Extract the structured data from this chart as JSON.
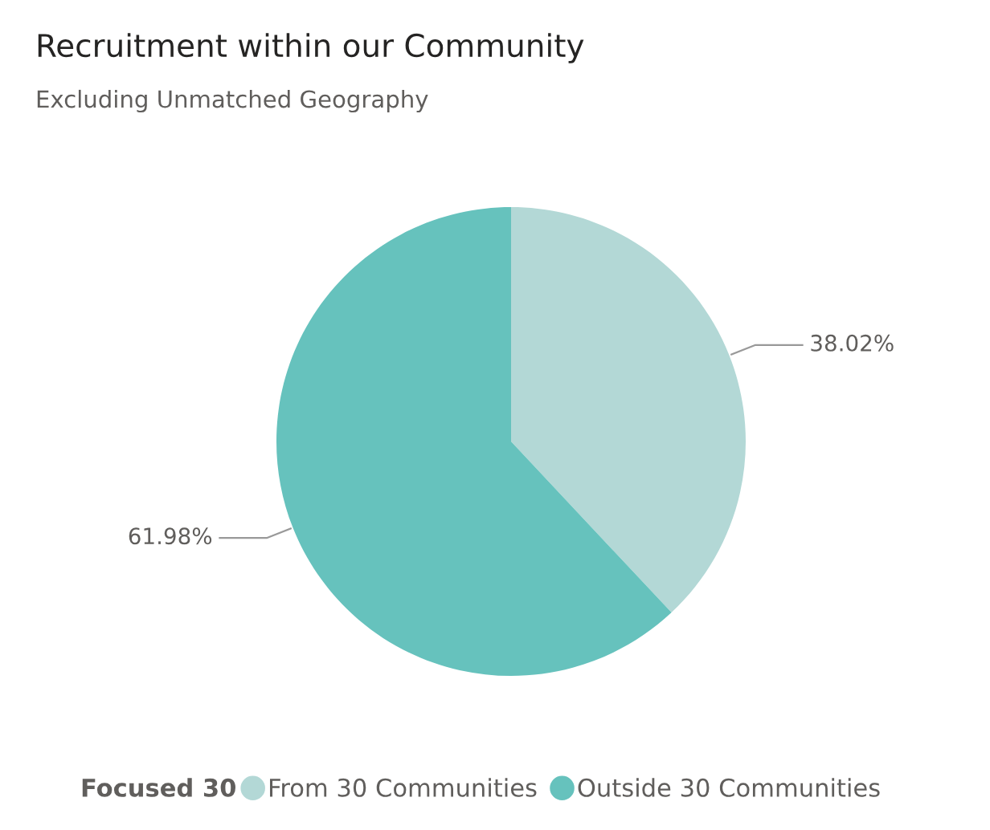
{
  "chart_data": {
    "type": "pie",
    "title": "Recruitment within our Community",
    "subtitle": "Excluding Unmatched Geography",
    "legend_title": "Focused 30",
    "categories": [
      "From 30 Communities",
      "Outside 30 Communities"
    ],
    "values": [
      38.02,
      61.98
    ],
    "colors": [
      "#b3d8d6",
      "#66c2bd"
    ],
    "value_labels": [
      "38.02%",
      "61.98%"
    ],
    "legend": "bottom"
  }
}
